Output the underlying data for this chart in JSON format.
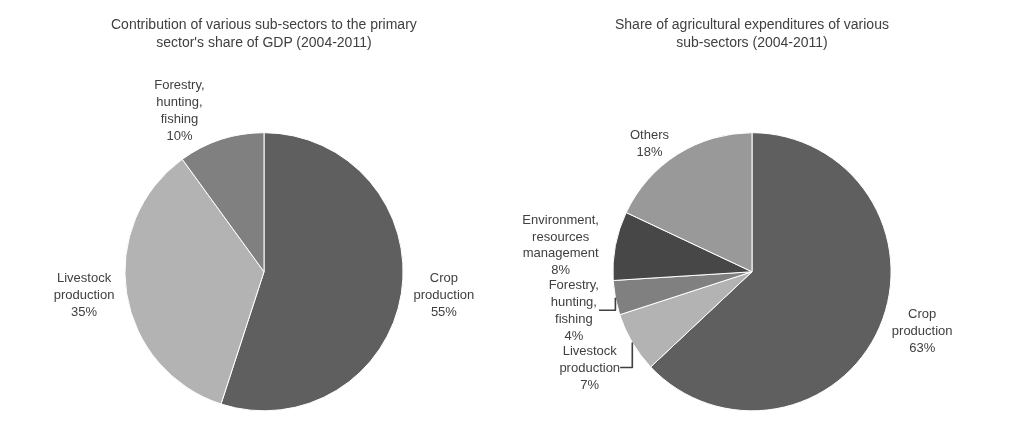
{
  "chart_data": [
    {
      "type": "pie",
      "title": "Contribution of various sub-sectors to the primary sector's share of GDP (2004-2011)",
      "categories": [
        "Crop production",
        "Livestock production",
        "Forestry, hunting, fishing"
      ],
      "values": [
        55,
        35,
        10
      ],
      "value_labels": [
        "55%",
        "35%",
        "10%"
      ],
      "colors": [
        "#5f5f5f",
        "#b3b3b3",
        "#808080"
      ],
      "legend": false
    },
    {
      "type": "pie",
      "title": "Share of agricultural expenditures of various sub-sectors (2004-2011)",
      "categories": [
        "Crop production",
        "Livestock production",
        "Forestry, hunting, fishing",
        "Environment, resources management",
        "Others"
      ],
      "values": [
        63,
        7,
        4,
        8,
        18
      ],
      "value_labels": [
        "63%",
        "7%",
        "4%",
        "8%",
        "18%"
      ],
      "colors": [
        "#5f5f5f",
        "#b3b3b3",
        "#808080",
        "#474747",
        "#999999"
      ],
      "legend": false
    }
  ]
}
